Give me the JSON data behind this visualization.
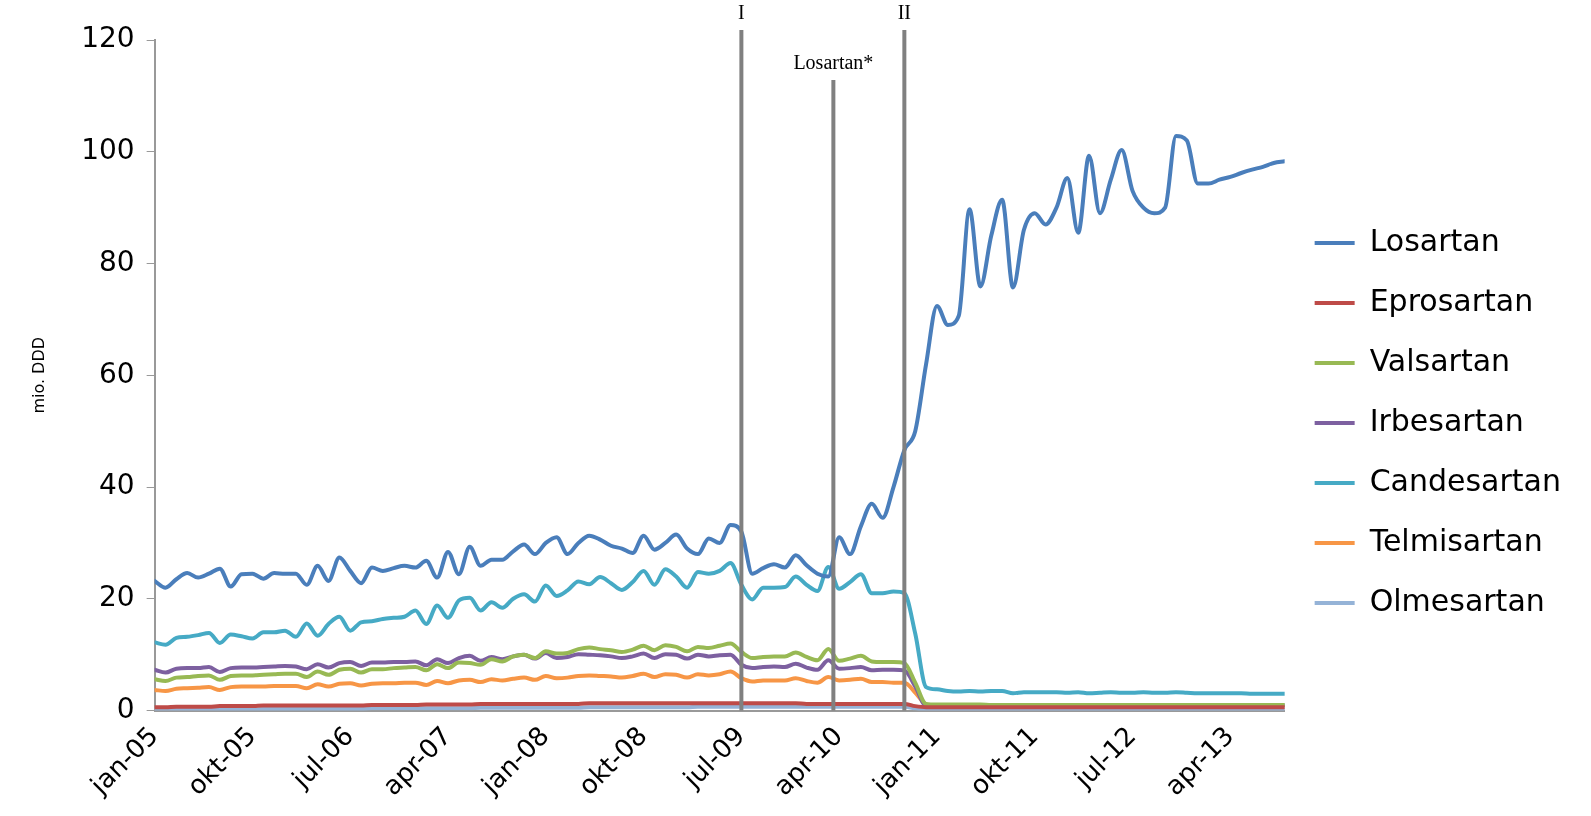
{
  "chart_data": {
    "type": "line",
    "ylabel": "mio. DDD",
    "x": [
      "2005-01",
      "2005-02",
      "2005-03",
      "2005-04",
      "2005-05",
      "2005-06",
      "2005-07",
      "2005-08",
      "2005-09",
      "2005-10",
      "2005-11",
      "2005-12",
      "2006-01",
      "2006-02",
      "2006-03",
      "2006-04",
      "2006-05",
      "2006-06",
      "2006-07",
      "2006-08",
      "2006-09",
      "2006-10",
      "2006-11",
      "2006-12",
      "2007-01",
      "2007-02",
      "2007-03",
      "2007-04",
      "2007-05",
      "2007-06",
      "2007-07",
      "2007-08",
      "2007-09",
      "2007-10",
      "2007-11",
      "2007-12",
      "2008-01",
      "2008-02",
      "2008-03",
      "2008-04",
      "2008-05",
      "2008-06",
      "2008-07",
      "2008-08",
      "2008-09",
      "2008-10",
      "2008-11",
      "2008-12",
      "2009-01",
      "2009-02",
      "2009-03",
      "2009-04",
      "2009-05",
      "2009-06",
      "2009-07",
      "2009-08",
      "2009-09",
      "2009-10",
      "2009-11",
      "2009-12",
      "2010-01",
      "2010-02",
      "2010-03",
      "2010-04",
      "2010-05",
      "2010-06",
      "2010-07",
      "2010-08",
      "2010-09",
      "2010-10",
      "2010-11",
      "2010-12",
      "2011-01",
      "2011-02",
      "2011-03",
      "2011-04",
      "2011-05",
      "2011-06",
      "2011-07",
      "2011-08",
      "2011-09",
      "2011-10",
      "2011-11",
      "2011-12",
      "2012-01",
      "2012-02",
      "2012-03",
      "2012-04",
      "2012-05",
      "2012-06",
      "2012-07",
      "2012-08",
      "2012-09",
      "2012-10",
      "2012-11",
      "2012-12",
      "2013-01",
      "2013-02",
      "2013-03",
      "2013-04",
      "2013-05",
      "2013-06",
      "2013-07",
      "2013-08",
      "2013-09"
    ],
    "xlim": [
      "2005-01",
      "2013-09"
    ],
    "xticks": [
      {
        "value": "2005-01",
        "label": "jan-05"
      },
      {
        "value": "2005-10",
        "label": "okt-05"
      },
      {
        "value": "2006-07",
        "label": "jul-06"
      },
      {
        "value": "2007-04",
        "label": "apr-07"
      },
      {
        "value": "2008-01",
        "label": "jan-08"
      },
      {
        "value": "2008-10",
        "label": "okt-08"
      },
      {
        "value": "2009-07",
        "label": "jul-09"
      },
      {
        "value": "2010-04",
        "label": "apr-10"
      },
      {
        "value": "2011-01",
        "label": "jan-11"
      },
      {
        "value": "2011-10",
        "label": "okt-11"
      },
      {
        "value": "2012-07",
        "label": "jul-12"
      },
      {
        "value": "2013-04",
        "label": "apr-13"
      }
    ],
    "ylim": [
      0,
      120
    ],
    "yticks": [
      0,
      20,
      40,
      60,
      80,
      100,
      120
    ],
    "grid": false,
    "legend": "right",
    "marker": "none",
    "line_style": "solid",
    "ref_lines": [
      {
        "axis": "x",
        "value": "2009-07",
        "label": "I",
        "color": "#808080"
      },
      {
        "axis": "x",
        "value": "2010-03-15",
        "label": "Losartan*",
        "color": "#808080"
      },
      {
        "axis": "x",
        "value": "2010-10",
        "label": "II",
        "color": "#808080"
      }
    ],
    "series": [
      {
        "name": "Losartan",
        "color": "#4a7ebb",
        "values": [
          23.2,
          22,
          23.5,
          24.6,
          23.8,
          24.5,
          25.4,
          22.2,
          24.4,
          24.5,
          23.6,
          24.6,
          24.5,
          24.5,
          22.5,
          25.9,
          23.2,
          27.4,
          25,
          22.8,
          25.6,
          25,
          25.5,
          25.9,
          25.6,
          26.8,
          23.8,
          28.4,
          24.4,
          29.3,
          25.9,
          27,
          27,
          28.5,
          29.7,
          28,
          30,
          31,
          28,
          30,
          31.3,
          30.6,
          29.5,
          29,
          28.2,
          31.3,
          28.8,
          30,
          31.5,
          29,
          28,
          30.8,
          30,
          33.2,
          32,
          24.5,
          25.5,
          26.2,
          25.6,
          27.8,
          26,
          24.5,
          24,
          31,
          28,
          33,
          37,
          34.5,
          40,
          46.6,
          50,
          62,
          72.4,
          69,
          70.6,
          89.7,
          75.9,
          85,
          91.4,
          75.7,
          86,
          89,
          87,
          90,
          95.3,
          85.5,
          99.3,
          89,
          95,
          100.3,
          93,
          90,
          89,
          90,
          102.8,
          102,
          94.3,
          94.3,
          95,
          95.5,
          96.2,
          96.8,
          97.3,
          98,
          98.3
        ]
      },
      {
        "name": "Eprosartan",
        "color": "#be4b48",
        "values": [
          0.6,
          0.6,
          0.7,
          0.7,
          0.7,
          0.7,
          0.8,
          0.8,
          0.8,
          0.8,
          0.9,
          0.9,
          0.9,
          0.9,
          0.9,
          0.9,
          0.9,
          0.9,
          0.9,
          0.9,
          1,
          1,
          1,
          1,
          1,
          1.1,
          1.1,
          1.1,
          1.1,
          1.1,
          1.2,
          1.2,
          1.2,
          1.2,
          1.2,
          1.2,
          1.2,
          1.2,
          1.2,
          1.2,
          1.3,
          1.3,
          1.3,
          1.3,
          1.3,
          1.3,
          1.3,
          1.3,
          1.3,
          1.3,
          1.3,
          1.3,
          1.3,
          1.3,
          1.3,
          1.3,
          1.3,
          1.3,
          1.3,
          1.3,
          1.2,
          1.2,
          1.2,
          1.2,
          1.2,
          1.2,
          1.2,
          1.2,
          1.2,
          1.2,
          0.8,
          0.6,
          0.6,
          0.6,
          0.6,
          0.6,
          0.6,
          0.6,
          0.6,
          0.6,
          0.6,
          0.6,
          0.6,
          0.6,
          0.6,
          0.6,
          0.6,
          0.6,
          0.6,
          0.6,
          0.6,
          0.6,
          0.6,
          0.6,
          0.6,
          0.6,
          0.6,
          0.6,
          0.6,
          0.6,
          0.6,
          0.6,
          0.6,
          0.6,
          0.6
        ]
      },
      {
        "name": "Valsartan",
        "color": "#98b954",
        "values": [
          5.6,
          5.3,
          5.9,
          6,
          6.2,
          6.3,
          5.5,
          6.2,
          6.3,
          6.3,
          6.4,
          6.5,
          6.6,
          6.6,
          6,
          7,
          6.4,
          7.3,
          7.5,
          6.8,
          7.4,
          7.4,
          7.6,
          7.7,
          7.8,
          7.2,
          8.3,
          7.6,
          8.6,
          8.5,
          8.2,
          9.2,
          8.8,
          9.7,
          10,
          9.4,
          10.6,
          10.2,
          10.3,
          11,
          11.3,
          11,
          10.8,
          10.5,
          10.9,
          11.6,
          10.8,
          11.7,
          11.4,
          10.6,
          11.4,
          11.2,
          11.6,
          12,
          10.5,
          9.4,
          9.6,
          9.7,
          9.7,
          10.4,
          9.6,
          9,
          11,
          8.9,
          9.3,
          9.8,
          8.8,
          8.7,
          8.7,
          8.5,
          5,
          1.2,
          1.1,
          1.1,
          1.1,
          1.1,
          1.1,
          1,
          1,
          1,
          1,
          1,
          1,
          1,
          1,
          1,
          1,
          1,
          1,
          1,
          1,
          1,
          1,
          1,
          1,
          1,
          1,
          1,
          1,
          1,
          1,
          1,
          1,
          1,
          1
        ]
      },
      {
        "name": "Irbesartan",
        "color": "#7d60a0",
        "values": [
          7.3,
          6.8,
          7.5,
          7.6,
          7.6,
          7.8,
          6.9,
          7.6,
          7.7,
          7.7,
          7.8,
          7.9,
          8,
          7.9,
          7.4,
          8.3,
          7.7,
          8.5,
          8.7,
          8,
          8.6,
          8.6,
          8.7,
          8.7,
          8.8,
          8.1,
          9.2,
          8.5,
          9.4,
          9.8,
          8.9,
          9.6,
          9.2,
          9.7,
          10,
          9.3,
          10.3,
          9.4,
          9.6,
          10.1,
          10,
          9.9,
          9.7,
          9.4,
          9.7,
          10.2,
          9.4,
          10.1,
          10,
          9.3,
          10,
          9.7,
          9.9,
          10,
          8.2,
          7.6,
          7.8,
          7.9,
          7.8,
          8.4,
          7.7,
          7.3,
          9,
          7.5,
          7.6,
          7.8,
          7.2,
          7.3,
          7.3,
          7.2,
          4.3,
          0.9,
          0.9,
          0.9,
          0.9,
          0.9,
          0.9,
          0.9,
          0.9,
          0.9,
          0.9,
          0.9,
          0.9,
          0.9,
          0.9,
          0.9,
          0.9,
          0.9,
          0.9,
          0.9,
          0.9,
          0.9,
          0.9,
          0.9,
          0.9,
          0.9,
          0.9,
          0.9,
          0.9,
          0.9,
          0.9,
          0.9,
          0.9,
          0.9,
          0.9
        ]
      },
      {
        "name": "Candesartan",
        "color": "#46aac5",
        "values": [
          12.2,
          11.8,
          13,
          13.2,
          13.5,
          13.9,
          12.1,
          13.6,
          13.3,
          12.9,
          14,
          14,
          14.3,
          13.2,
          15.6,
          13.4,
          15.5,
          16.8,
          14.3,
          15.8,
          16,
          16.4,
          16.6,
          16.8,
          17.9,
          15.5,
          18.8,
          16.6,
          19.7,
          20.2,
          17.9,
          19.4,
          18.4,
          20,
          20.8,
          19.5,
          22.4,
          20.5,
          21.5,
          23.1,
          22.6,
          23.9,
          22.8,
          21.6,
          23,
          25,
          22.5,
          25.3,
          24,
          22,
          24.8,
          24.5,
          25,
          26.4,
          22.5,
          19.9,
          22,
          22,
          22.1,
          24,
          22.5,
          21.4,
          25.7,
          21.8,
          23,
          24.4,
          21,
          21,
          21.3,
          21,
          13.8,
          4.2,
          3.8,
          3.5,
          3.4,
          3.5,
          3.4,
          3.5,
          3.5,
          3.1,
          3.3,
          3.3,
          3.3,
          3.3,
          3.2,
          3.3,
          3.1,
          3.2,
          3.3,
          3.2,
          3.2,
          3.3,
          3.2,
          3.2,
          3.3,
          3.2,
          3.1,
          3.1,
          3.1,
          3.1,
          3.1,
          3,
          3,
          3,
          3
        ]
      },
      {
        "name": "Telmisartan",
        "color": "#f79646",
        "values": [
          3.7,
          3.5,
          3.9,
          4,
          4.1,
          4.2,
          3.7,
          4.2,
          4.3,
          4.3,
          4.3,
          4.4,
          4.4,
          4.4,
          4,
          4.7,
          4.3,
          4.8,
          4.9,
          4.5,
          4.8,
          4.9,
          4.9,
          5,
          5,
          4.6,
          5.3,
          4.9,
          5.4,
          5.5,
          5.1,
          5.6,
          5.4,
          5.7,
          5.9,
          5.5,
          6.2,
          5.8,
          5.9,
          6.2,
          6.3,
          6.2,
          6.1,
          5.9,
          6.2,
          6.6,
          6,
          6.5,
          6.4,
          5.9,
          6.5,
          6.3,
          6.5,
          7,
          5.8,
          5.2,
          5.4,
          5.4,
          5.4,
          5.8,
          5.3,
          5,
          6,
          5.4,
          5.5,
          5.7,
          5.1,
          5.1,
          5,
          5,
          3.2,
          0.8,
          null,
          null,
          null,
          null,
          null,
          null,
          null,
          null,
          null,
          null,
          null,
          null,
          null,
          null,
          null,
          null,
          null,
          null,
          null,
          null,
          null,
          null,
          null,
          null,
          null,
          null,
          null,
          null,
          null,
          null,
          null,
          null,
          null
        ]
      },
      {
        "name": "Olmesartan",
        "color": "#95b3d7",
        "values": [
          0.1,
          0.1,
          0.2,
          0.2,
          0.2,
          0.2,
          0.2,
          0.2,
          0.2,
          0.2,
          0.3,
          0.3,
          0.3,
          0.3,
          0.3,
          0.3,
          0.3,
          0.3,
          0.3,
          0.3,
          0.4,
          0.4,
          0.4,
          0.4,
          0.4,
          0.4,
          0.4,
          0.4,
          0.4,
          0.4,
          0.5,
          0.5,
          0.5,
          0.5,
          0.5,
          0.5,
          0.5,
          0.5,
          0.5,
          0.5,
          0.6,
          0.6,
          0.6,
          0.6,
          0.6,
          0.6,
          0.6,
          0.6,
          0.6,
          0.6,
          0.7,
          0.7,
          0.7,
          0.7,
          0.7,
          0.7,
          0.7,
          0.7,
          0.7,
          0.7,
          0.7,
          0.7,
          0.7,
          0.7,
          0.7,
          0.7,
          0.7,
          0.7,
          0.7,
          0.7,
          0.4,
          0.1,
          0.1,
          0.1,
          0.1,
          0.1,
          0.1,
          0.1,
          0.1,
          0.1,
          0.1,
          0.1,
          0.1,
          0.1,
          0.1,
          0.1,
          0.1,
          0.1,
          0.1,
          0.1,
          0.1,
          0.1,
          0.1,
          0.1,
          0.1,
          0.1,
          0.1,
          0.1,
          0.1,
          0.1,
          0.1,
          0.1,
          0.1,
          0.1,
          0.1
        ]
      }
    ]
  }
}
